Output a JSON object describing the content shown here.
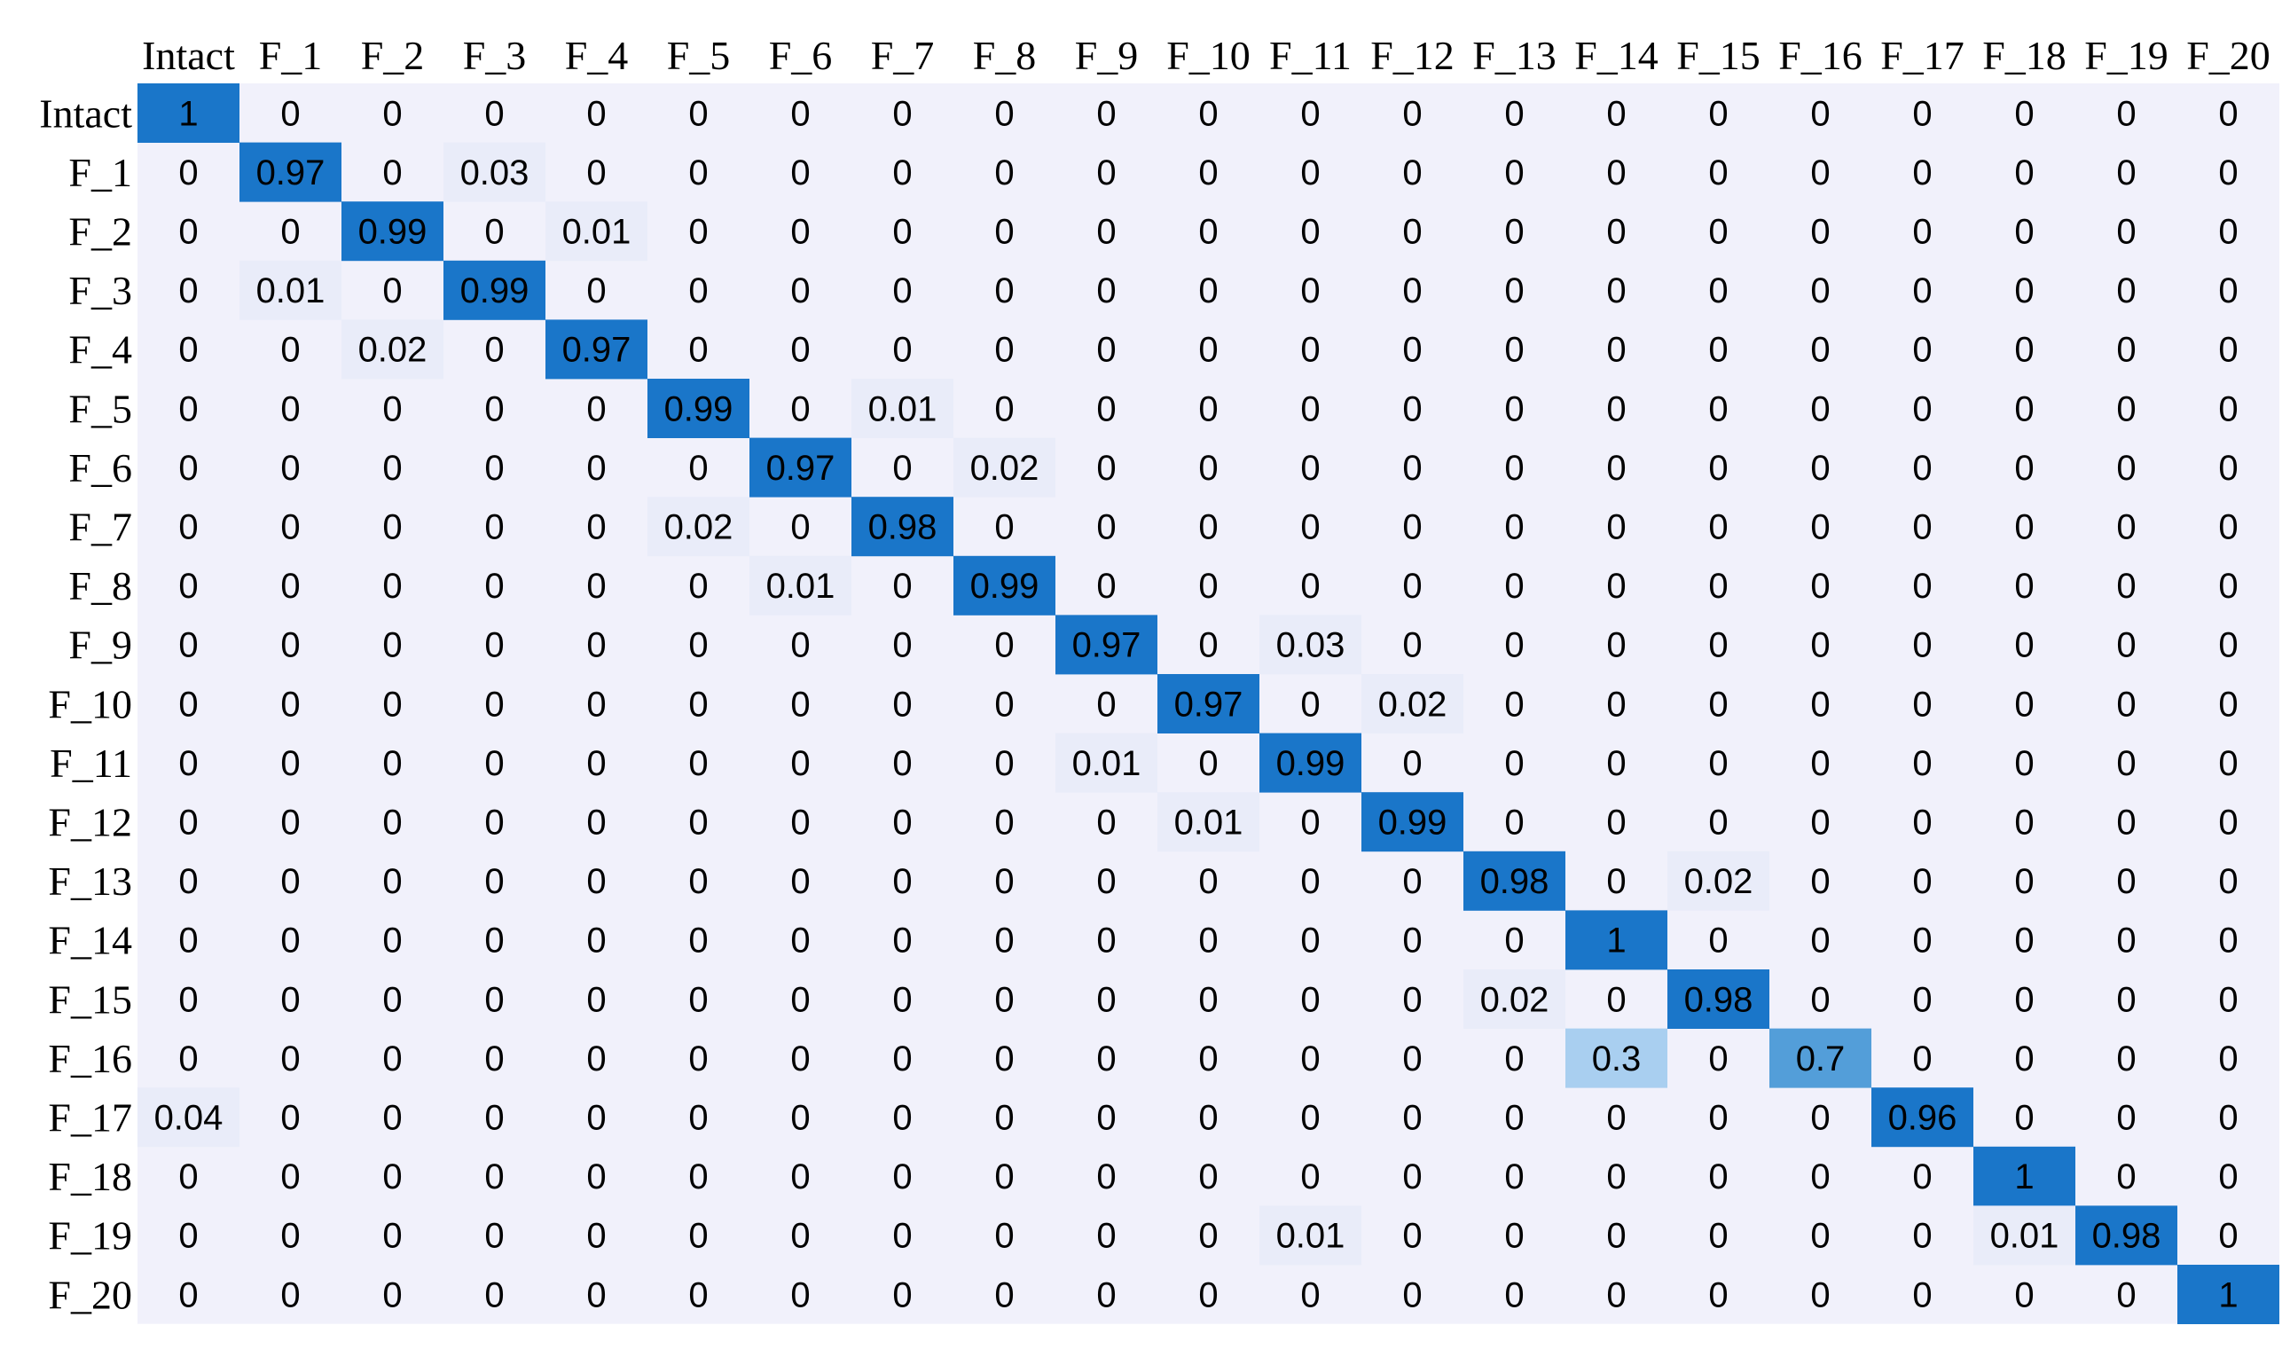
{
  "chart_data": {
    "type": "heatmap",
    "title": "",
    "xlabel": "",
    "ylabel": "",
    "row_labels": [
      "Intact",
      "F_1",
      "F_2",
      "F_3",
      "F_4",
      "F_5",
      "F_6",
      "F_7",
      "F_8",
      "F_9",
      "F_10",
      "F_11",
      "F_12",
      "F_13",
      "F_14",
      "F_15",
      "F_16",
      "F_17",
      "F_18",
      "F_19",
      "F_20"
    ],
    "col_labels": [
      "Intact",
      "F_1",
      "F_2",
      "F_3",
      "F_4",
      "F_5",
      "F_6",
      "F_7",
      "F_8",
      "F_9",
      "F_10",
      "F_11",
      "F_12",
      "F_13",
      "F_14",
      "F_15",
      "F_16",
      "F_17",
      "F_18",
      "F_19",
      "F_20"
    ],
    "values": [
      [
        1,
        0,
        0,
        0,
        0,
        0,
        0,
        0,
        0,
        0,
        0,
        0,
        0,
        0,
        0,
        0,
        0,
        0,
        0,
        0,
        0
      ],
      [
        0,
        0.97,
        0,
        0.03,
        0,
        0,
        0,
        0,
        0,
        0,
        0,
        0,
        0,
        0,
        0,
        0,
        0,
        0,
        0,
        0,
        0
      ],
      [
        0,
        0,
        0.99,
        0,
        0.01,
        0,
        0,
        0,
        0,
        0,
        0,
        0,
        0,
        0,
        0,
        0,
        0,
        0,
        0,
        0,
        0
      ],
      [
        0,
        0.01,
        0,
        0.99,
        0,
        0,
        0,
        0,
        0,
        0,
        0,
        0,
        0,
        0,
        0,
        0,
        0,
        0,
        0,
        0,
        0
      ],
      [
        0,
        0,
        0.02,
        0,
        0.97,
        0,
        0,
        0,
        0,
        0,
        0,
        0,
        0,
        0,
        0,
        0,
        0,
        0,
        0,
        0,
        0
      ],
      [
        0,
        0,
        0,
        0,
        0,
        0.99,
        0,
        0.01,
        0,
        0,
        0,
        0,
        0,
        0,
        0,
        0,
        0,
        0,
        0,
        0,
        0
      ],
      [
        0,
        0,
        0,
        0,
        0,
        0,
        0.97,
        0,
        0.02,
        0,
        0,
        0,
        0,
        0,
        0,
        0,
        0,
        0,
        0,
        0,
        0
      ],
      [
        0,
        0,
        0,
        0,
        0,
        0.02,
        0,
        0.98,
        0,
        0,
        0,
        0,
        0,
        0,
        0,
        0,
        0,
        0,
        0,
        0,
        0
      ],
      [
        0,
        0,
        0,
        0,
        0,
        0,
        0.01,
        0,
        0.99,
        0,
        0,
        0,
        0,
        0,
        0,
        0,
        0,
        0,
        0,
        0,
        0
      ],
      [
        0,
        0,
        0,
        0,
        0,
        0,
        0,
        0,
        0,
        0.97,
        0,
        0.03,
        0,
        0,
        0,
        0,
        0,
        0,
        0,
        0,
        0
      ],
      [
        0,
        0,
        0,
        0,
        0,
        0,
        0,
        0,
        0,
        0,
        0.97,
        0,
        0.02,
        0,
        0,
        0,
        0,
        0,
        0,
        0,
        0
      ],
      [
        0,
        0,
        0,
        0,
        0,
        0,
        0,
        0,
        0,
        0.01,
        0,
        0.99,
        0,
        0,
        0,
        0,
        0,
        0,
        0,
        0,
        0
      ],
      [
        0,
        0,
        0,
        0,
        0,
        0,
        0,
        0,
        0,
        0,
        0.01,
        0,
        0.99,
        0,
        0,
        0,
        0,
        0,
        0,
        0,
        0
      ],
      [
        0,
        0,
        0,
        0,
        0,
        0,
        0,
        0,
        0,
        0,
        0,
        0,
        0,
        0.98,
        0,
        0.02,
        0,
        0,
        0,
        0,
        0
      ],
      [
        0,
        0,
        0,
        0,
        0,
        0,
        0,
        0,
        0,
        0,
        0,
        0,
        0,
        0,
        1,
        0,
        0,
        0,
        0,
        0,
        0
      ],
      [
        0,
        0,
        0,
        0,
        0,
        0,
        0,
        0,
        0,
        0,
        0,
        0,
        0,
        0.02,
        0,
        0.98,
        0,
        0,
        0,
        0,
        0
      ],
      [
        0,
        0,
        0,
        0,
        0,
        0,
        0,
        0,
        0,
        0,
        0,
        0,
        0,
        0,
        0.3,
        0,
        0.7,
        0,
        0,
        0,
        0
      ],
      [
        0.04,
        0,
        0,
        0,
        0,
        0,
        0,
        0,
        0,
        0,
        0,
        0,
        0,
        0,
        0,
        0,
        0,
        0.96,
        0,
        0,
        0
      ],
      [
        0,
        0,
        0,
        0,
        0,
        0,
        0,
        0,
        0,
        0,
        0,
        0,
        0,
        0,
        0,
        0,
        0,
        0,
        1,
        0,
        0
      ],
      [
        0,
        0,
        0,
        0,
        0,
        0,
        0,
        0,
        0,
        0,
        0,
        0.01,
        0,
        0,
        0,
        0,
        0,
        0,
        0.01,
        0.98,
        0
      ],
      [
        0,
        0,
        0,
        0,
        0,
        0,
        0,
        0,
        0,
        0,
        0,
        0,
        0,
        0,
        0,
        0,
        0,
        0,
        0,
        0,
        1
      ]
    ],
    "colors": {
      "background_cell": "#f1f1fb",
      "strong_cell": "#1a76c9",
      "medium_cell": "#539ed9",
      "light_cell": "#a9cff0",
      "faint_cell": "#e9ecf9",
      "text": "#000000"
    },
    "grid": false,
    "legend": "none"
  }
}
